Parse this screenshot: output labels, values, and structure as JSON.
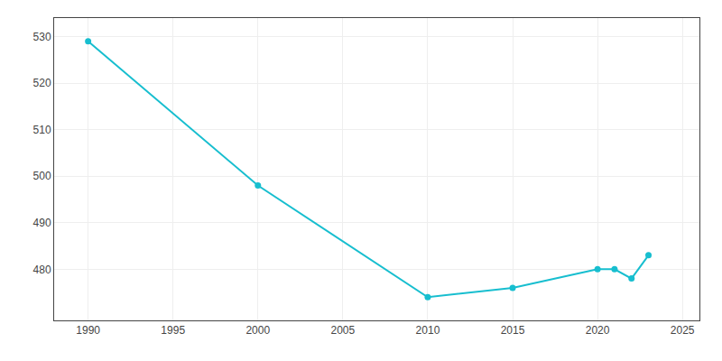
{
  "chart_data": {
    "type": "line",
    "x": [
      1990,
      2000,
      2010,
      2015,
      2020,
      2021,
      2022,
      2023
    ],
    "values": [
      529,
      498,
      474,
      476,
      480,
      480,
      478,
      483
    ],
    "color": "#17BECF",
    "marker": "circle",
    "xlim": [
      1988,
      2026
    ],
    "xticks": [
      1990,
      1995,
      2000,
      2005,
      2010,
      2015,
      2020,
      2025
    ],
    "ylim": [
      469,
      534
    ],
    "yticks": [
      480,
      490,
      500,
      510,
      520,
      530
    ],
    "grid": true
  }
}
